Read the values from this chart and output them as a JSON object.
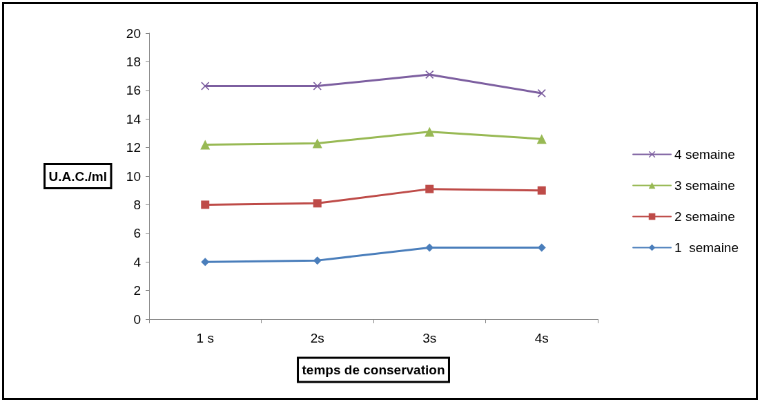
{
  "chart_data": {
    "type": "line",
    "xlabel": "temps de conservation",
    "ylabel": "U.A.C./ml",
    "categories": [
      "1 s",
      "2s",
      "3s",
      "4s"
    ],
    "series": [
      {
        "name": "1  semaine",
        "color": "#4a7ebb",
        "marker": "diamond",
        "values": [
          4.0,
          4.1,
          5.0,
          5.0
        ]
      },
      {
        "name": "2 semaine",
        "color": "#be4b48",
        "marker": "square",
        "values": [
          8.0,
          8.1,
          9.1,
          9.0
        ]
      },
      {
        "name": "3 semaine",
        "color": "#98b954",
        "marker": "triangle",
        "values": [
          12.2,
          12.3,
          13.1,
          12.6
        ]
      },
      {
        "name": "4 semaine",
        "color": "#7d5fa0",
        "marker": "cross",
        "values": [
          16.3,
          16.3,
          17.1,
          15.8
        ]
      }
    ],
    "ylim": [
      0,
      20
    ],
    "yticks": [
      0,
      2,
      4,
      6,
      8,
      10,
      12,
      14,
      16,
      18,
      20
    ],
    "grid": false,
    "legend": "right",
    "line_style": "solid"
  }
}
